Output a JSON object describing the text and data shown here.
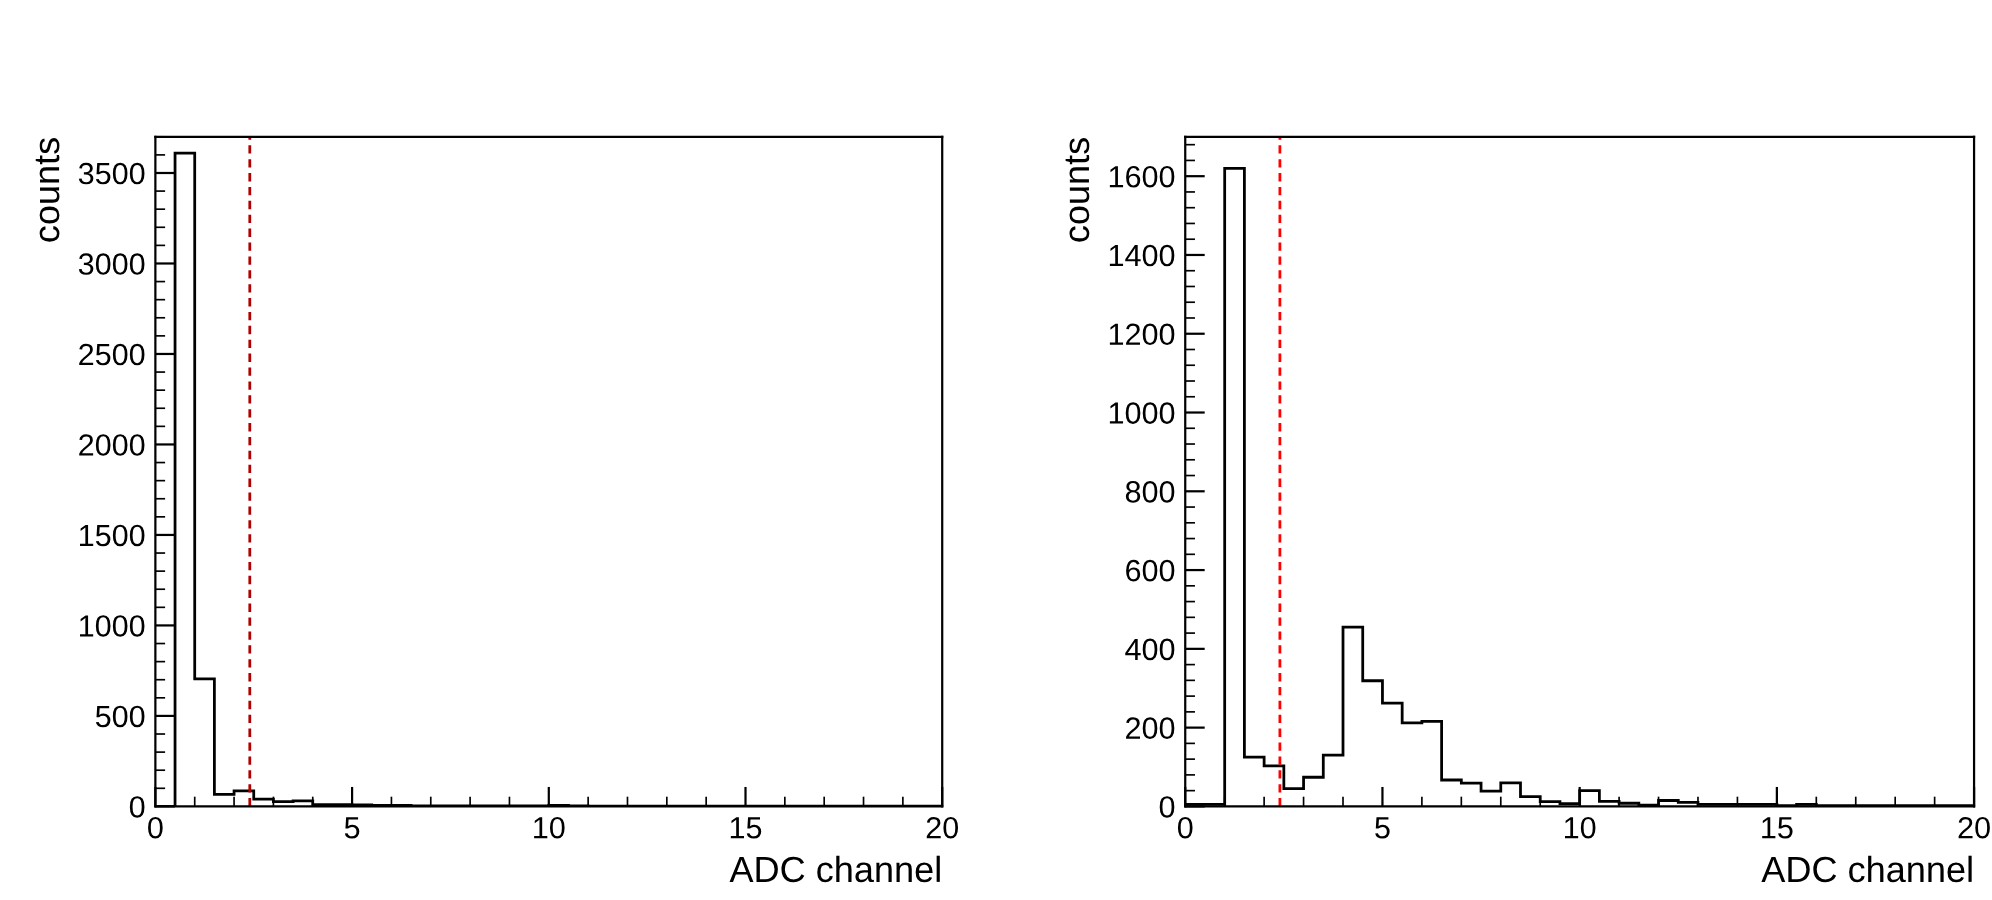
{
  "chart_data": [
    {
      "type": "histogram",
      "xlabel": "ADC channel",
      "ylabel": "counts",
      "bins": [
        0,
        0.5,
        1,
        1.5,
        2,
        2.5,
        3,
        3.5,
        4,
        4.5,
        5,
        5.5,
        6,
        6.5,
        7,
        7.5,
        8,
        8.5,
        9,
        9.5,
        10,
        10.5,
        11,
        11.5,
        12,
        12.5,
        13,
        13.5,
        14,
        14.5,
        15,
        15.5,
        16,
        16.5,
        17,
        17.5,
        18,
        18.5,
        19,
        19.5,
        20
      ],
      "values": [
        0,
        3610,
        705,
        66,
        86,
        40,
        26,
        30,
        10,
        10,
        8,
        5,
        5,
        3,
        3,
        3,
        3,
        3,
        3,
        3,
        5,
        3,
        2,
        2,
        2,
        2,
        2,
        2,
        2,
        2,
        2,
        2,
        2,
        2,
        2,
        2,
        2,
        2,
        2,
        2
      ],
      "color": "#000000",
      "xlim": [
        0,
        20
      ],
      "xticks": [
        0,
        5,
        10,
        15,
        20
      ],
      "ylim": [
        0,
        3700
      ],
      "yticks": [
        0,
        500,
        1000,
        1500,
        2000,
        2500,
        3000,
        3500
      ],
      "ref_lines": [
        {
          "axis": "x",
          "value": 2.4,
          "color": "#b00000",
          "line_style": "dashed"
        }
      ],
      "grid": false,
      "legend": false
    },
    {
      "type": "histogram",
      "xlabel": "ADC channel",
      "ylabel": "counts",
      "bins": [
        0,
        0.5,
        1,
        1.5,
        2,
        2.5,
        3,
        3.5,
        4,
        4.5,
        5,
        5.5,
        6,
        6.5,
        7,
        7.5,
        8,
        8.5,
        9,
        9.5,
        10,
        10.5,
        11,
        11.5,
        12,
        12.5,
        13,
        13.5,
        14,
        14.5,
        15,
        15.5,
        16,
        16.5,
        17,
        17.5,
        18,
        18.5,
        19,
        19.5,
        20
      ],
      "values": [
        5,
        5,
        1620,
        125,
        103,
        45,
        74,
        130,
        455,
        319,
        262,
        212,
        216,
        67,
        59,
        39,
        60,
        25,
        12,
        7,
        40,
        13,
        8,
        3,
        15,
        10,
        5,
        5,
        5,
        5,
        2,
        5,
        2,
        2,
        2,
        2,
        2,
        2,
        2,
        2
      ],
      "color": "#000000",
      "xlim": [
        0,
        20
      ],
      "xticks": [
        0,
        5,
        10,
        15,
        20
      ],
      "ylim": [
        0,
        1700
      ],
      "yticks": [
        0,
        200,
        400,
        600,
        800,
        1000,
        1200,
        1400,
        1600
      ],
      "ref_lines": [
        {
          "axis": "x",
          "value": 2.4,
          "color": "#ff0000",
          "line_style": "dashed"
        }
      ],
      "grid": false,
      "legend": false
    }
  ]
}
